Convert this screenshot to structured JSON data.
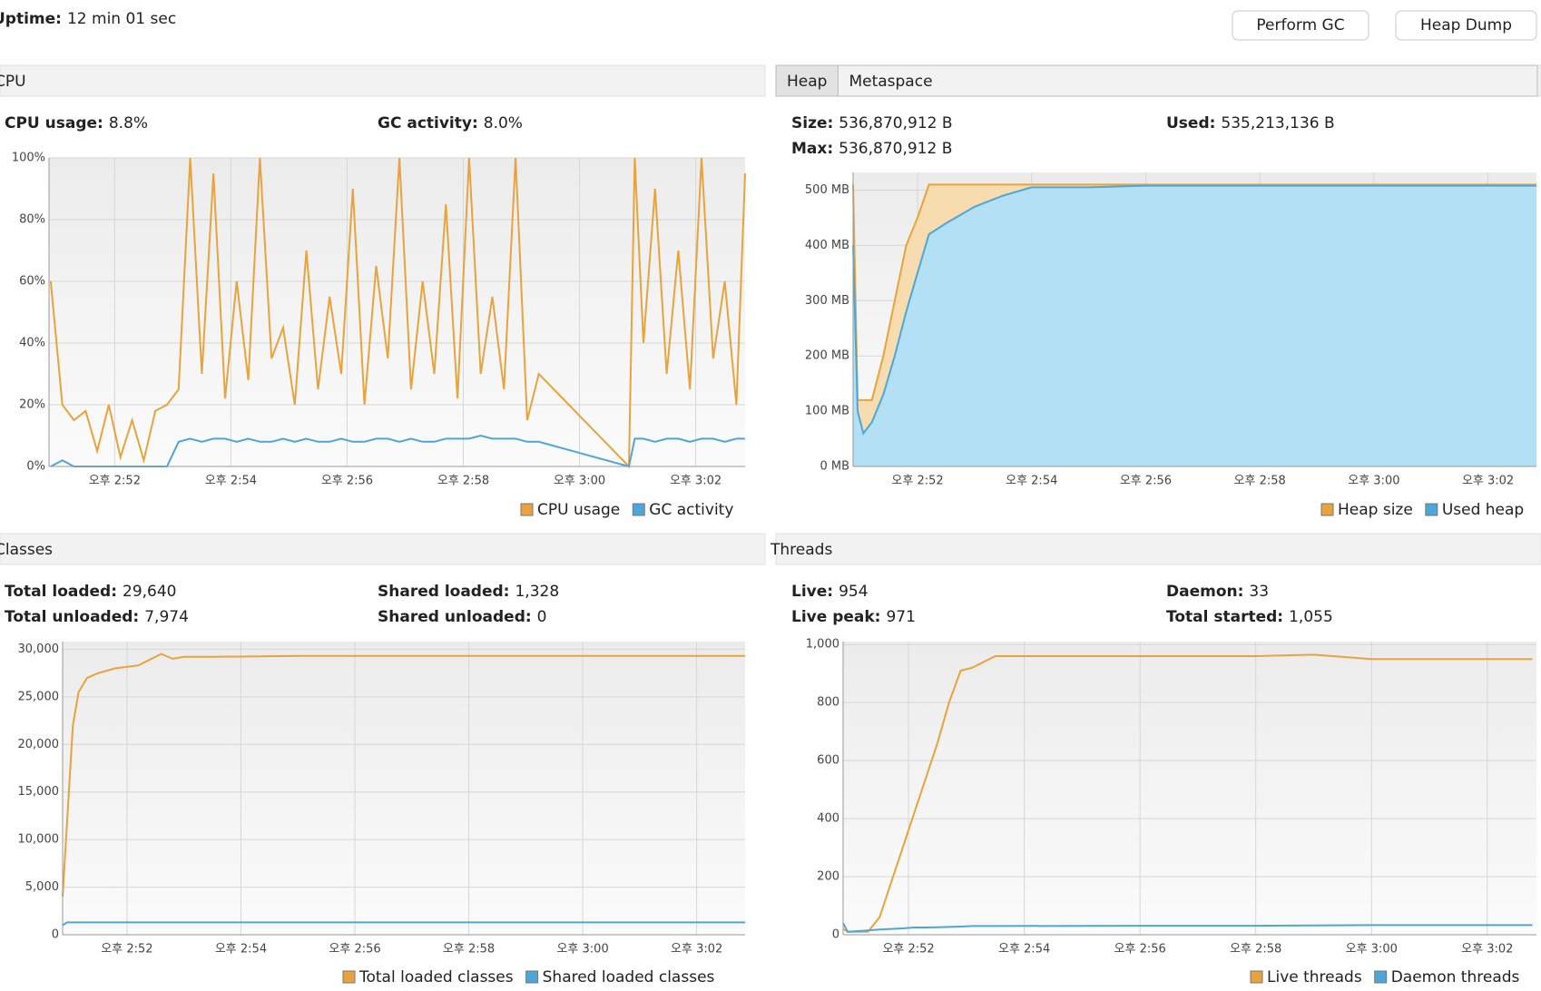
{
  "uptime": {
    "label": "Uptime:",
    "value": "12 min 01 sec"
  },
  "buttons": [
    "Perform GC",
    "Heap Dump"
  ],
  "panels": [
    {
      "title": "CPU",
      "stats": [
        {
          "label": "CPU usage:",
          "value": "8.8%"
        },
        {
          "label": "GC activity:",
          "value": "8.0%"
        }
      ],
      "chart": {
        "type": "line",
        "x": [
          170.9,
          171.1,
          171.3,
          171.5,
          171.7,
          171.9,
          172.1,
          172.3,
          172.5,
          172.7,
          172.9,
          173.1,
          173.3,
          173.5,
          173.7,
          173.9,
          174.1,
          174.3,
          174.5,
          174.7,
          174.9,
          175.1,
          175.3,
          175.5,
          175.7,
          175.9,
          176.1,
          176.3,
          176.5,
          176.7,
          176.9,
          177.1,
          177.3,
          177.5,
          177.7,
          177.9,
          178.1,
          178.3,
          178.5,
          178.7,
          178.9,
          179.1,
          179.3,
          180.85,
          180.95,
          181.1,
          181.3,
          181.5,
          181.7,
          181.9,
          182.1,
          182.3,
          182.5,
          182.7,
          182.85
        ],
        "series": [
          {
            "name": "CPU usage",
            "color": "#e8a33d",
            "values": [
              60,
              20,
              15,
              18,
              5,
              20,
              3,
              15,
              2,
              18,
              20,
              25,
              100,
              30,
              95,
              22,
              60,
              28,
              100,
              35,
              45,
              20,
              70,
              25,
              55,
              30,
              90,
              20,
              65,
              35,
              100,
              25,
              60,
              30,
              85,
              22,
              100,
              30,
              55,
              25,
              100,
              15,
              30,
              0,
              100,
              40,
              90,
              30,
              70,
              25,
              100,
              35,
              60,
              20,
              95
            ]
          },
          {
            "name": "GC activity",
            "color": "#4ea6d8",
            "values": [
              0,
              2,
              0,
              0,
              0,
              0,
              0,
              0,
              0,
              0,
              0,
              8,
              9,
              8,
              9,
              9,
              8,
              9,
              8,
              8,
              9,
              8,
              9,
              8,
              8,
              9,
              8,
              8,
              9,
              9,
              8,
              9,
              8,
              8,
              9,
              9,
              9,
              10,
              9,
              9,
              9,
              8,
              8,
              0,
              9,
              9,
              8,
              9,
              9,
              8,
              9,
              9,
              8,
              9,
              9
            ]
          }
        ],
        "xlim": [
          170.87,
          182.85
        ],
        "xticks": [
          {
            "value": 172,
            "label": "오후 2:52"
          },
          {
            "value": 174,
            "label": "오후 2:54"
          },
          {
            "value": 176,
            "label": "오후 2:56"
          },
          {
            "value": 178,
            "label": "오후 2:58"
          },
          {
            "value": 180,
            "label": "오후 3:00"
          },
          {
            "value": 182,
            "label": "오후 3:02"
          }
        ],
        "ylim": [
          0,
          100
        ],
        "yticks": [
          {
            "value": 0,
            "label": "0%"
          },
          {
            "value": 20,
            "label": "20%"
          },
          {
            "value": 40,
            "label": "40%"
          },
          {
            "value": 60,
            "label": "60%"
          },
          {
            "value": 80,
            "label": "80%"
          },
          {
            "value": 100,
            "label": "100%"
          }
        ],
        "grid": true
      }
    },
    {
      "tabs": [
        "Heap",
        "Metaspace"
      ],
      "stats": [
        {
          "label": "Size:",
          "value": "536,870,912 B"
        },
        {
          "label": "Used:",
          "value": "535,213,136 B"
        },
        {
          "label": "Max:",
          "value": "536,870,912 B"
        }
      ],
      "chart": {
        "type": "area",
        "x": [
          170.87,
          170.95,
          171.05,
          171.2,
          171.4,
          171.6,
          171.8,
          172.0,
          172.2,
          172.5,
          173.0,
          173.5,
          174.0,
          175,
          176,
          178,
          180,
          182.85
        ],
        "series": [
          {
            "name": "Heap size",
            "color": "#e8a33d",
            "fill": "#f6dcae",
            "values": [
              510,
              120,
              120,
              120,
              200,
              300,
              400,
              450,
              510,
              510,
              510,
              510,
              510,
              510,
              510,
              510,
              510,
              510
            ]
          },
          {
            "name": "Used heap",
            "color": "#4ea6d8",
            "fill": "#b3e0f5",
            "values": [
              400,
              100,
              60,
              80,
              130,
              200,
              280,
              350,
              420,
              440,
              470,
              490,
              505,
              505,
              508,
              508,
              508,
              508
            ]
          }
        ],
        "xlim": [
          170.87,
          182.85
        ],
        "xticks": [
          {
            "value": 172,
            "label": "오후 2:52"
          },
          {
            "value": 174,
            "label": "오후 2:54"
          },
          {
            "value": 176,
            "label": "오후 2:56"
          },
          {
            "value": 178,
            "label": "오후 2:58"
          },
          {
            "value": 180,
            "label": "오후 3:00"
          },
          {
            "value": 182,
            "label": "오후 3:02"
          }
        ],
        "ylim": [
          0,
          532
        ],
        "yticks": [
          {
            "value": 0,
            "label": "0 MB"
          },
          {
            "value": 100,
            "label": "100 MB"
          },
          {
            "value": 200,
            "label": "200 MB"
          },
          {
            "value": 300,
            "label": "300 MB"
          },
          {
            "value": 400,
            "label": "400 MB"
          },
          {
            "value": 500,
            "label": "500 MB"
          }
        ],
        "grid": true
      }
    },
    {
      "title": "Classes",
      "stats": [
        {
          "label": "Total loaded:",
          "value": "29,640"
        },
        {
          "label": "Shared loaded:",
          "value": "1,328"
        },
        {
          "label": "Total unloaded:",
          "value": "7,974"
        },
        {
          "label": "Shared unloaded:",
          "value": "0"
        }
      ],
      "chart": {
        "type": "line",
        "x": [
          170.87,
          170.95,
          171.05,
          171.15,
          171.3,
          171.5,
          171.8,
          172.2,
          172.6,
          172.8,
          173.0,
          173.5,
          175,
          178,
          180,
          182.85
        ],
        "series": [
          {
            "name": "Total loaded classes",
            "color": "#e8a33d",
            "values": [
              4000,
              12000,
              22000,
              25500,
              27000,
              27500,
              28000,
              28300,
              29500,
              29000,
              29200,
              29200,
              29300,
              29300,
              29300,
              29300
            ]
          },
          {
            "name": "Shared loaded classes",
            "color": "#4ea6d8",
            "values": [
              1000,
              1300,
              1300,
              1300,
              1300,
              1300,
              1300,
              1300,
              1300,
              1300,
              1300,
              1300,
              1300,
              1300,
              1300,
              1300
            ]
          }
        ],
        "xlim": [
          170.87,
          182.85
        ],
        "xticks": [
          {
            "value": 172,
            "label": "오후 2:52"
          },
          {
            "value": 174,
            "label": "오후 2:54"
          },
          {
            "value": 176,
            "label": "오후 2:56"
          },
          {
            "value": 178,
            "label": "오후 2:58"
          },
          {
            "value": 180,
            "label": "오후 3:00"
          },
          {
            "value": 182,
            "label": "오후 3:02"
          }
        ],
        "ylim": [
          0,
          30800
        ],
        "yticks": [
          0,
          {
            "value": 5000,
            "label": "5,000"
          },
          {
            "value": 10000,
            "label": "10,000"
          },
          {
            "value": 15000,
            "label": "15,000"
          },
          {
            "value": 20000,
            "label": "20,000"
          },
          {
            "value": 25000,
            "label": "25,000"
          },
          {
            "value": 30000,
            "label": "30,000"
          }
        ],
        "grid": true
      }
    },
    {
      "title": "Threads",
      "stats": [
        {
          "label": "Live:",
          "value": "954"
        },
        {
          "label": "Daemon:",
          "value": "33"
        },
        {
          "label": "Live peak:",
          "value": "971"
        },
        {
          "label": "Total started:",
          "value": "1,055"
        }
      ],
      "chart": {
        "type": "line",
        "x": [
          170.87,
          170.95,
          171.3,
          171.5,
          171.7,
          171.9,
          172.1,
          172.3,
          172.5,
          172.7,
          172.9,
          173.1,
          173.5,
          176,
          178,
          179,
          180,
          182.78
        ],
        "series": [
          {
            "name": "Live threads",
            "color": "#e8a33d",
            "values": [
              20,
              10,
              10,
              60,
              180,
              300,
              420,
              540,
              660,
              800,
              910,
              920,
              960,
              960,
              960,
              965,
              950,
              950
            ]
          },
          {
            "name": "Daemon threads",
            "color": "#4ea6d8",
            "values": [
              40,
              10,
              15,
              18,
              20,
              22,
              25,
              25,
              26,
              27,
              28,
              30,
              30,
              31,
              31,
              32,
              33,
              33
            ]
          }
        ],
        "xlim": [
          170.87,
          182.85
        ],
        "xticks": [
          {
            "value": 172,
            "label": "오후 2:52"
          },
          {
            "value": 174,
            "label": "오후 2:54"
          },
          {
            "value": 176,
            "label": "오후 2:56"
          },
          {
            "value": 178,
            "label": "오후 2:58"
          },
          {
            "value": 180,
            "label": "오후 3:00"
          },
          {
            "value": 182,
            "label": "오후 3:02"
          }
        ],
        "ylim": [
          0,
          1010
        ],
        "yticks": [
          0,
          200,
          400,
          600,
          800,
          {
            "value": 1000,
            "label": "1,000"
          }
        ],
        "grid": true
      }
    }
  ]
}
